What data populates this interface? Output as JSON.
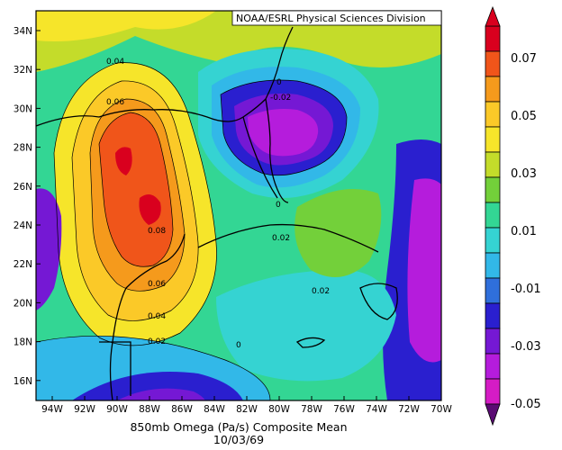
{
  "map": {
    "credit": "NOAA/ESRL Physical Sciences Division",
    "title_line1": "850mb Omega (Pa/s) Composite Mean",
    "title_line2": "10/03/69",
    "lat_labels": [
      "34N",
      "32N",
      "30N",
      "28N",
      "26N",
      "24N",
      "22N",
      "20N",
      "18N",
      "16N"
    ],
    "lon_labels": [
      "94W",
      "92W",
      "90W",
      "88W",
      "86W",
      "84W",
      "82W",
      "80W",
      "78W",
      "76W",
      "74W",
      "72W",
      "70W"
    ],
    "contour_labels": [
      "0.04",
      "0.06",
      "0.08",
      "0.06",
      "0.04",
      "0.02",
      "0",
      "-0.02",
      "0",
      "0.02",
      "0.02",
      "0"
    ]
  },
  "colorbar": {
    "labels": [
      "0.07",
      "0.05",
      "0.03",
      "0.01",
      "-0.01",
      "-0.03",
      "-0.05"
    ],
    "colors": [
      "#d9001e",
      "#f0551a",
      "#f59a1c",
      "#fbc928",
      "#f6e52a",
      "#c4dc2a",
      "#73d03a",
      "#33d694",
      "#35d3d2",
      "#32b8e8",
      "#2f6fdb",
      "#2a1fcf",
      "#7518d4",
      "#b51cdc",
      "#d51cc5",
      "#5a0b73"
    ]
  }
}
